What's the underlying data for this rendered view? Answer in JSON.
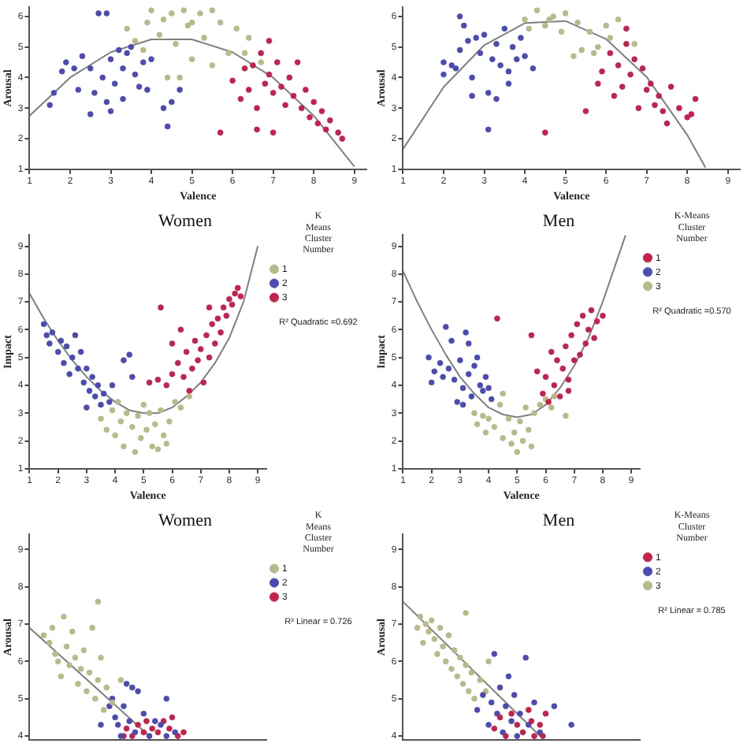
{
  "chart_data": [
    {
      "type": "scatter",
      "xlabel": "Valence",
      "ylabel": "Arousal",
      "xlim": [
        1,
        9.3
      ],
      "ylim": [
        1,
        6.3
      ],
      "xticks": [
        1,
        2,
        3,
        4,
        5,
        6,
        7,
        8,
        9
      ],
      "yticks": [
        1,
        2,
        3,
        4,
        5,
        6
      ],
      "marker": "circle",
      "grid": false,
      "legend": false,
      "series": [
        {
          "color": "#b8ba8a",
          "x": [
            3.4,
            3.6,
            3.8,
            3.9,
            4.0,
            4.2,
            4.3,
            4.4,
            4.5,
            4.6,
            4.8,
            4.9,
            5.0,
            5.2,
            5.3,
            5.5,
            5.5,
            5.7,
            5.9,
            6.1,
            6.3,
            6.4,
            6.7,
            5.0,
            4.7
          ],
          "values": [
            5.6,
            5.2,
            4.9,
            5.8,
            6.2,
            5.4,
            5.9,
            4.0,
            6.1,
            5.1,
            6.2,
            5.7,
            4.6,
            6.1,
            5.3,
            6.2,
            4.4,
            5.8,
            4.8,
            5.6,
            4.8,
            5.3,
            4.5,
            5.8,
            4.0
          ]
        },
        {
          "color": "#4b4bb5",
          "x": [
            1.5,
            1.6,
            1.8,
            1.9,
            2.1,
            2.2,
            2.3,
            2.5,
            2.5,
            2.6,
            2.7,
            2.8,
            2.9,
            3.0,
            3.0,
            3.1,
            3.2,
            3.3,
            3.3,
            3.4,
            3.5,
            3.6,
            3.7,
            3.8,
            3.9,
            4.0,
            4.3,
            4.4,
            4.5,
            4.7,
            2.9
          ],
          "values": [
            3.1,
            3.5,
            4.2,
            4.5,
            4.3,
            3.6,
            4.7,
            2.8,
            4.3,
            3.5,
            6.1,
            4.0,
            3.2,
            2.9,
            4.6,
            3.8,
            4.9,
            3.3,
            4.3,
            4.8,
            5.0,
            4.1,
            3.7,
            4.5,
            3.6,
            4.6,
            3.0,
            2.4,
            3.2,
            3.6,
            6.1
          ]
        },
        {
          "color": "#c4214b",
          "x": [
            5.7,
            6.0,
            6.2,
            6.3,
            6.4,
            6.5,
            6.6,
            6.6,
            6.7,
            6.8,
            6.9,
            7.0,
            7.0,
            7.1,
            7.2,
            7.3,
            7.4,
            7.5,
            7.6,
            7.7,
            7.8,
            7.9,
            8.0,
            8.1,
            8.2,
            8.3,
            8.4,
            8.6,
            8.7,
            6.9
          ],
          "values": [
            2.2,
            3.9,
            3.3,
            4.3,
            3.6,
            4.4,
            3.0,
            2.3,
            4.8,
            3.8,
            4.1,
            2.2,
            3.5,
            4.5,
            3.7,
            3.1,
            4.0,
            3.4,
            4.5,
            3.0,
            3.6,
            2.7,
            3.2,
            2.5,
            2.9,
            2.3,
            2.6,
            2.2,
            2.0,
            5.2
          ]
        },
        {
          "type": "line",
          "marker": "none",
          "color": "#7f7f7f",
          "x": [
            1,
            2,
            3,
            4,
            5,
            6,
            7,
            8,
            9
          ],
          "values": [
            2.75,
            4.0,
            4.83,
            5.25,
            5.25,
            4.83,
            4.0,
            2.75,
            1.09
          ]
        }
      ]
    },
    {
      "type": "scatter",
      "xlabel": "Valence",
      "ylabel": "Arousal",
      "xlim": [
        1,
        9.3
      ],
      "ylim": [
        1,
        6.3
      ],
      "xticks": [
        1,
        2,
        3,
        4,
        5,
        6,
        7,
        8,
        9
      ],
      "yticks": [
        1,
        2,
        3,
        4,
        5,
        6
      ],
      "marker": "circle",
      "grid": false,
      "legend": false,
      "series": [
        {
          "color": "#c4214b",
          "x": [
            4.5,
            5.5,
            5.8,
            5.9,
            6.1,
            6.2,
            6.3,
            6.4,
            6.5,
            6.6,
            6.7,
            6.8,
            6.9,
            7.0,
            7.1,
            7.2,
            7.3,
            7.4,
            7.5,
            7.6,
            7.8,
            8.0,
            8.1,
            8.2,
            6.5
          ],
          "values": [
            2.2,
            2.9,
            3.8,
            4.2,
            4.8,
            3.4,
            4.4,
            3.7,
            5.1,
            4.1,
            4.6,
            3.0,
            4.3,
            3.6,
            3.8,
            3.1,
            3.4,
            2.9,
            2.5,
            3.7,
            3.0,
            2.7,
            2.8,
            3.3,
            5.6
          ]
        },
        {
          "color": "#4b4bb5",
          "x": [
            2.0,
            2.0,
            2.2,
            2.3,
            2.4,
            2.5,
            2.6,
            2.7,
            2.7,
            2.8,
            2.9,
            3.0,
            3.1,
            3.1,
            3.2,
            3.3,
            3.3,
            3.4,
            3.5,
            3.6,
            3.6,
            3.7,
            3.8,
            3.9,
            4.0,
            4.2,
            2.4
          ],
          "values": [
            4.5,
            4.1,
            4.4,
            4.3,
            4.9,
            5.7,
            5.2,
            4.0,
            3.4,
            5.3,
            4.8,
            5.4,
            3.5,
            2.3,
            4.6,
            3.3,
            5.1,
            4.4,
            5.6,
            4.2,
            3.8,
            5.0,
            4.6,
            5.3,
            4.7,
            4.3,
            6.0
          ]
        },
        {
          "color": "#b8ba8a",
          "x": [
            4.0,
            4.1,
            4.3,
            4.5,
            4.7,
            4.9,
            5.0,
            5.2,
            5.3,
            5.4,
            5.6,
            5.8,
            6.0,
            6.1,
            6.3,
            5.7,
            4.6,
            6.7
          ],
          "values": [
            5.9,
            5.6,
            6.2,
            5.7,
            6.0,
            5.5,
            6.1,
            4.7,
            5.8,
            4.9,
            5.5,
            5.0,
            5.7,
            5.3,
            5.9,
            4.8,
            5.9,
            5.1
          ]
        },
        {
          "type": "line",
          "marker": "none",
          "color": "#7f7f7f",
          "x": [
            1,
            2,
            3,
            4,
            5,
            6,
            7,
            8,
            8.45
          ],
          "values": [
            1.66,
            3.69,
            5.06,
            5.78,
            5.85,
            5.26,
            4.02,
            2.12,
            1.05
          ]
        }
      ]
    },
    {
      "type": "scatter",
      "title": "Women",
      "xlabel": "Valence",
      "ylabel": "Impact",
      "legend_title": "K Means Cluster Number",
      "annotations": [
        "R² Quadratic =0.692"
      ],
      "xlim": [
        1,
        9.3
      ],
      "ylim": [
        1,
        9.4
      ],
      "xticks": [
        1,
        2,
        3,
        4,
        5,
        6,
        7,
        8,
        9
      ],
      "yticks": [
        1,
        2,
        3,
        4,
        5,
        6,
        7,
        8,
        9
      ],
      "marker": "circle",
      "grid": false,
      "legend": "right",
      "series": [
        {
          "name": "1",
          "color": "#b8ba8a",
          "x": [
            3.5,
            3.7,
            3.9,
            4.0,
            4.2,
            4.3,
            4.4,
            4.6,
            4.7,
            4.8,
            4.9,
            5.0,
            5.1,
            5.3,
            5.4,
            5.5,
            5.6,
            5.7,
            5.8,
            5.9,
            6.1,
            6.3,
            6.6,
            4.1,
            5.2
          ],
          "values": [
            2.8,
            2.4,
            3.1,
            2.2,
            2.7,
            1.8,
            3.0,
            2.5,
            1.6,
            2.9,
            2.1,
            3.3,
            2.4,
            1.8,
            2.6,
            1.7,
            3.1,
            2.2,
            1.9,
            2.7,
            3.4,
            3.2,
            3.6,
            3.4,
            3.0
          ]
        },
        {
          "name": "2",
          "color": "#4b4bb5",
          "x": [
            1.5,
            1.6,
            1.7,
            1.8,
            2.0,
            2.1,
            2.2,
            2.3,
            2.4,
            2.5,
            2.6,
            2.7,
            2.8,
            2.9,
            3.0,
            3.1,
            3.2,
            3.3,
            3.4,
            3.5,
            3.6,
            3.8,
            3.9,
            4.3,
            4.5,
            4.6,
            3.0
          ],
          "values": [
            6.2,
            5.8,
            5.5,
            5.9,
            5.2,
            5.6,
            4.8,
            5.4,
            4.4,
            5.0,
            5.8,
            4.6,
            5.2,
            4.1,
            4.6,
            3.8,
            4.3,
            3.6,
            4.0,
            3.3,
            3.7,
            3.4,
            4.0,
            4.9,
            5.1,
            4.3,
            3.2
          ]
        },
        {
          "name": "3",
          "color": "#c4214b",
          "x": [
            5.2,
            5.5,
            5.8,
            6.0,
            6.0,
            6.2,
            6.3,
            6.4,
            6.5,
            6.6,
            6.7,
            6.8,
            6.9,
            7.0,
            7.1,
            7.2,
            7.3,
            7.4,
            7.5,
            7.6,
            7.7,
            7.8,
            7.9,
            8.0,
            8.1,
            8.2,
            8.3,
            8.4,
            5.6,
            7.3
          ],
          "values": [
            4.1,
            4.2,
            4.0,
            4.4,
            5.5,
            4.8,
            6.0,
            4.3,
            5.2,
            3.8,
            4.6,
            5.6,
            4.9,
            5.3,
            4.1,
            5.8,
            5.0,
            6.2,
            5.5,
            6.4,
            5.9,
            6.8,
            6.5,
            7.1,
            6.9,
            7.3,
            7.5,
            7.2,
            6.8,
            6.8
          ]
        },
        {
          "type": "line",
          "marker": "none",
          "color": "#7f7f7f",
          "x": [
            1,
            1.5,
            2,
            2.5,
            3,
            3.5,
            4,
            4.5,
            5,
            5.5,
            6,
            6.5,
            7,
            7.5,
            8,
            8.5,
            9
          ],
          "values": [
            7.3,
            6.4,
            5.6,
            4.9,
            4.3,
            3.8,
            3.4,
            3.1,
            3.0,
            3.0,
            3.2,
            3.6,
            4.1,
            4.8,
            5.7,
            7.0,
            9.0
          ]
        }
      ]
    },
    {
      "type": "scatter",
      "title": "Men",
      "xlabel": "Valence",
      "ylabel": "Impact",
      "legend_title": "K-Means Cluster Number",
      "annotations": [
        "R² Quadratic =0.570"
      ],
      "xlim": [
        1,
        9.3
      ],
      "ylim": [
        1,
        9.4
      ],
      "xticks": [
        1,
        2,
        3,
        4,
        5,
        6,
        7,
        8,
        9
      ],
      "yticks": [
        1,
        2,
        3,
        4,
        5,
        6,
        7,
        8,
        9
      ],
      "marker": "circle",
      "grid": false,
      "legend": "right",
      "series": [
        {
          "name": "1",
          "color": "#c4214b",
          "x": [
            4.3,
            5.5,
            5.7,
            5.9,
            6.0,
            6.1,
            6.2,
            6.3,
            6.4,
            6.5,
            6.6,
            6.7,
            6.8,
            6.9,
            7.0,
            7.1,
            7.2,
            7.3,
            7.4,
            7.5,
            7.6,
            7.7,
            7.8,
            8.0,
            6.8
          ],
          "values": [
            6.4,
            5.8,
            4.5,
            3.7,
            4.3,
            3.4,
            5.2,
            4.0,
            4.9,
            3.6,
            4.6,
            5.4,
            4.2,
            5.8,
            4.9,
            6.2,
            5.1,
            6.5,
            5.5,
            6.0,
            6.7,
            5.7,
            6.3,
            6.5,
            3.8
          ]
        },
        {
          "name": "2",
          "color": "#4b4bb5",
          "x": [
            1.9,
            2.0,
            2.1,
            2.3,
            2.4,
            2.5,
            2.6,
            2.7,
            2.8,
            2.9,
            3.0,
            3.1,
            3.2,
            3.3,
            3.4,
            3.5,
            3.6,
            3.7,
            3.8,
            3.9,
            4.0,
            4.1,
            3.3,
            3.1
          ],
          "values": [
            5.0,
            4.1,
            4.5,
            4.8,
            4.3,
            6.1,
            4.6,
            5.6,
            4.2,
            3.4,
            4.9,
            3.9,
            5.9,
            4.4,
            3.6,
            4.7,
            5.0,
            4.0,
            3.8,
            4.3,
            3.9,
            3.5,
            5.5,
            3.3
          ]
        },
        {
          "name": "3",
          "color": "#b8ba8a",
          "x": [
            3.5,
            3.6,
            3.8,
            3.9,
            4.0,
            4.2,
            4.4,
            4.5,
            4.7,
            4.8,
            4.9,
            5.0,
            5.1,
            5.2,
            5.3,
            5.4,
            5.5,
            5.6,
            5.8,
            6.0,
            6.2,
            6.3,
            6.7,
            4.5
          ],
          "values": [
            3.0,
            2.6,
            2.9,
            2.3,
            2.8,
            2.5,
            3.3,
            2.1,
            2.8,
            1.9,
            2.3,
            1.6,
            2.7,
            2.0,
            3.2,
            2.4,
            1.8,
            3.0,
            3.3,
            3.5,
            3.2,
            3.6,
            2.9,
            3.7
          ]
        },
        {
          "type": "line",
          "marker": "none",
          "color": "#7f7f7f",
          "x": [
            1,
            1.5,
            2,
            2.5,
            3,
            3.5,
            4,
            4.5,
            5,
            5.5,
            6,
            6.5,
            7,
            7.5,
            8,
            8.5,
            8.8
          ],
          "values": [
            8.1,
            7.0,
            6.0,
            5.1,
            4.3,
            3.7,
            3.2,
            2.95,
            2.85,
            2.95,
            3.3,
            3.9,
            4.7,
            5.7,
            7.0,
            8.5,
            9.4
          ]
        }
      ]
    },
    {
      "type": "scatter",
      "title": "Women",
      "ylabel": "Arousal",
      "legend_title": "K Means Cluster Number",
      "annotations": [
        "R² Linear = 0.726"
      ],
      "xlim": [
        1,
        9.3
      ],
      "ylim": [
        3.9,
        9.4
      ],
      "yticks": [
        4,
        5,
        6,
        7,
        8,
        9
      ],
      "tick_labels": "y",
      "marker": "circle",
      "grid": false,
      "legend": "right",
      "series": [
        {
          "name": "1",
          "color": "#b8ba8a",
          "x": [
            1.5,
            1.7,
            1.8,
            1.9,
            2.0,
            2.1,
            2.2,
            2.3,
            2.4,
            2.5,
            2.6,
            2.7,
            2.8,
            2.9,
            3.0,
            3.1,
            3.2,
            3.3,
            3.4,
            3.5,
            3.6,
            3.7,
            3.9,
            3.4,
            4.2
          ],
          "values": [
            6.7,
            6.5,
            6.9,
            6.2,
            6.0,
            5.6,
            7.2,
            6.4,
            5.9,
            6.8,
            6.1,
            5.4,
            5.8,
            6.3,
            5.2,
            5.7,
            6.9,
            5.0,
            5.5,
            6.1,
            4.7,
            5.3,
            4.9,
            7.6,
            5.5
          ]
        },
        {
          "name": "2",
          "color": "#4b4bb5",
          "x": [
            3.5,
            3.8,
            3.9,
            4.0,
            4.2,
            4.3,
            4.5,
            4.6,
            4.7,
            4.8,
            5.0,
            5.2,
            5.4,
            5.6,
            5.8,
            5.8,
            6.1,
            4.4,
            4.1
          ],
          "values": [
            4.3,
            4.8,
            5.0,
            4.5,
            4.0,
            4.8,
            4.4,
            5.3,
            4.1,
            5.2,
            4.6,
            4.0,
            4.4,
            4.3,
            4.0,
            5.0,
            4.1,
            5.4,
            4.3
          ]
        },
        {
          "name": "3",
          "color": "#c4214b",
          "x": [
            4.3,
            4.4,
            4.6,
            4.8,
            5.0,
            5.1,
            5.3,
            5.5,
            5.7,
            5.9,
            6.0,
            6.2,
            6.4
          ],
          "values": [
            4.0,
            4.2,
            4.0,
            4.3,
            4.1,
            4.4,
            4.2,
            4.1,
            4.4,
            4.2,
            4.5,
            4.0,
            4.1
          ]
        },
        {
          "type": "line",
          "marker": "none",
          "color": "#7f7f7f",
          "x": [
            1,
            5.2
          ],
          "values": [
            6.9,
            4.0
          ]
        }
      ]
    },
    {
      "type": "scatter",
      "title": "Men",
      "ylabel": "Arousal",
      "legend_title": "K-Means Cluster Number",
      "annotations": [
        "R² Linear = 0.785"
      ],
      "xlim": [
        1,
        9.3
      ],
      "ylim": [
        3.9,
        9.4
      ],
      "yticks": [
        4,
        5,
        6,
        7,
        8,
        9
      ],
      "tick_labels": "y",
      "marker": "circle",
      "grid": false,
      "legend": "right",
      "series": [
        {
          "name": "1",
          "color": "#c4214b",
          "x": [
            4.2,
            4.4,
            4.6,
            4.8,
            5.0,
            5.2,
            5.4,
            5.5,
            5.6,
            5.8,
            6.0,
            5.9
          ],
          "values": [
            4.2,
            4.5,
            4.0,
            4.6,
            4.3,
            4.1,
            4.7,
            4.4,
            4.0,
            4.3,
            4.6,
            4.0
          ]
        },
        {
          "name": "2",
          "color": "#4b4bb5",
          "x": [
            3.6,
            3.8,
            4.0,
            4.1,
            4.2,
            4.3,
            4.4,
            4.5,
            4.6,
            4.7,
            4.8,
            4.9,
            5.0,
            5.1,
            5.3,
            5.4,
            5.6,
            5.8,
            6.3,
            6.9
          ],
          "values": [
            4.7,
            5.1,
            4.3,
            4.9,
            6.2,
            4.6,
            5.3,
            4.1,
            4.8,
            5.6,
            4.4,
            5.1,
            4.0,
            4.6,
            6.1,
            4.3,
            4.9,
            4.1,
            4.8,
            4.3
          ]
        },
        {
          "name": "3",
          "color": "#b8ba8a",
          "x": [
            1.5,
            1.6,
            1.7,
            1.8,
            1.9,
            2.0,
            2.1,
            2.2,
            2.3,
            2.4,
            2.5,
            2.6,
            2.7,
            2.8,
            2.9,
            3.0,
            3.1,
            3.2,
            3.3,
            3.4,
            3.5,
            3.7,
            3.9,
            3.2,
            4.0
          ],
          "values": [
            6.9,
            7.2,
            6.5,
            7.0,
            6.8,
            7.1,
            6.6,
            6.2,
            6.9,
            6.4,
            6.0,
            6.7,
            5.8,
            6.3,
            5.6,
            6.1,
            5.4,
            5.9,
            5.2,
            5.7,
            5.0,
            5.5,
            5.2,
            7.3,
            6.0
          ]
        },
        {
          "type": "line",
          "marker": "none",
          "color": "#7f7f7f",
          "x": [
            1,
            5.8
          ],
          "values": [
            7.6,
            4.0
          ]
        }
      ]
    }
  ]
}
